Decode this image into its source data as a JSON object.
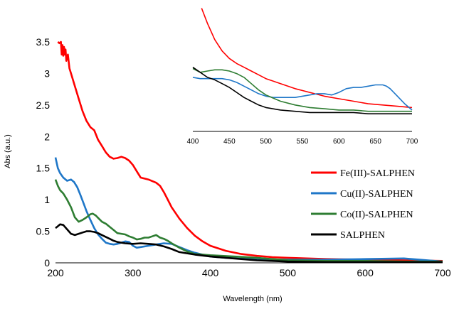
{
  "chart_data": [
    {
      "type": "line",
      "role": "main",
      "xlabel": "Wavelength (nm)",
      "ylabel": "Abs (a.u.)",
      "xlim": [
        200,
        700
      ],
      "ylim": [
        0,
        3.5
      ],
      "xticks": [
        "200",
        "300",
        "400",
        "500",
        "600",
        "700"
      ],
      "yticks": [
        "0",
        "0.5",
        "1",
        "1.5",
        "2",
        "2.5",
        "3",
        "3.5"
      ],
      "grid": false,
      "legend_position": "right",
      "series": [
        {
          "name": "Fe(III)-SALPHEN",
          "color": "#ff0000",
          "x": [
            203,
            205,
            207,
            208,
            209,
            210,
            211,
            212,
            213,
            214,
            216,
            218,
            220,
            225,
            230,
            235,
            240,
            245,
            250,
            255,
            260,
            265,
            270,
            275,
            280,
            285,
            290,
            295,
            300,
            305,
            310,
            320,
            330,
            335,
            340,
            345,
            350,
            360,
            370,
            380,
            390,
            400,
            420,
            440,
            460,
            480,
            500,
            550,
            600,
            650,
            700
          ],
          "y": [
            3.5,
            3.48,
            3.5,
            3.3,
            3.45,
            3.28,
            3.42,
            3.3,
            3.38,
            3.2,
            3.3,
            3.08,
            3.0,
            2.8,
            2.6,
            2.4,
            2.25,
            2.15,
            2.1,
            1.95,
            1.85,
            1.75,
            1.68,
            1.65,
            1.66,
            1.68,
            1.66,
            1.62,
            1.55,
            1.45,
            1.35,
            1.32,
            1.27,
            1.22,
            1.12,
            1.0,
            0.88,
            0.7,
            0.55,
            0.43,
            0.34,
            0.27,
            0.19,
            0.14,
            0.11,
            0.09,
            0.08,
            0.06,
            0.05,
            0.04,
            0.03
          ]
        },
        {
          "name": "Cu(II)-SALPHEN",
          "color": "#1f77c8",
          "x": [
            200,
            203,
            206,
            210,
            215,
            220,
            224,
            228,
            232,
            236,
            240,
            245,
            250,
            255,
            260,
            265,
            270,
            275,
            280,
            285,
            290,
            295,
            300,
            305,
            310,
            320,
            330,
            340,
            350,
            360,
            370,
            380,
            400,
            420,
            450,
            500,
            550,
            600,
            650,
            660,
            680,
            700
          ],
          "y": [
            1.67,
            1.5,
            1.42,
            1.35,
            1.3,
            1.32,
            1.28,
            1.2,
            1.08,
            0.95,
            0.82,
            0.68,
            0.55,
            0.45,
            0.38,
            0.32,
            0.3,
            0.29,
            0.3,
            0.32,
            0.34,
            0.33,
            0.27,
            0.24,
            0.25,
            0.27,
            0.29,
            0.31,
            0.3,
            0.25,
            0.2,
            0.16,
            0.1,
            0.08,
            0.06,
            0.05,
            0.05,
            0.06,
            0.07,
            0.06,
            0.04,
            0.02
          ]
        },
        {
          "name": "Co(II)-SALPHEN",
          "color": "#2e7d32",
          "x": [
            200,
            203,
            206,
            210,
            215,
            220,
            225,
            230,
            235,
            240,
            245,
            248,
            252,
            256,
            260,
            265,
            270,
            275,
            280,
            285,
            290,
            295,
            300,
            305,
            310,
            315,
            320,
            325,
            330,
            335,
            340,
            345,
            350,
            360,
            370,
            380,
            400,
            430,
            460,
            480,
            500,
            550,
            600,
            650,
            700
          ],
          "y": [
            1.32,
            1.22,
            1.15,
            1.1,
            1.0,
            0.88,
            0.72,
            0.65,
            0.68,
            0.72,
            0.77,
            0.78,
            0.75,
            0.7,
            0.65,
            0.62,
            0.57,
            0.52,
            0.47,
            0.46,
            0.45,
            0.42,
            0.4,
            0.37,
            0.38,
            0.4,
            0.4,
            0.42,
            0.44,
            0.4,
            0.38,
            0.35,
            0.31,
            0.24,
            0.18,
            0.14,
            0.12,
            0.1,
            0.08,
            0.06,
            0.04,
            0.03,
            0.03,
            0.02,
            0.02
          ]
        },
        {
          "name": "SALPHEN",
          "color": "#000000",
          "x": [
            200,
            203,
            206,
            210,
            215,
            220,
            225,
            230,
            235,
            240,
            245,
            250,
            255,
            260,
            265,
            270,
            275,
            280,
            285,
            290,
            300,
            310,
            320,
            330,
            340,
            350,
            360,
            380,
            400,
            420,
            440,
            460,
            480,
            500,
            550,
            600,
            650,
            700
          ],
          "y": [
            0.55,
            0.58,
            0.61,
            0.6,
            0.53,
            0.46,
            0.44,
            0.46,
            0.48,
            0.5,
            0.5,
            0.49,
            0.47,
            0.44,
            0.41,
            0.38,
            0.35,
            0.33,
            0.32,
            0.31,
            0.3,
            0.31,
            0.3,
            0.29,
            0.26,
            0.22,
            0.17,
            0.13,
            0.1,
            0.08,
            0.06,
            0.04,
            0.03,
            0.02,
            0.01,
            0.01,
            0.01,
            0.01
          ]
        }
      ]
    },
    {
      "type": "line",
      "role": "inset",
      "xlim": [
        400,
        700
      ],
      "xticks": [
        "400",
        "450",
        "500",
        "550",
        "600",
        "650",
        "700"
      ],
      "grid": false,
      "series": [
        {
          "name": "Fe(III)-SALPHEN",
          "color": "#ff0000",
          "x": [
            412,
            420,
            430,
            440,
            450,
            460,
            470,
            480,
            490,
            500,
            520,
            540,
            560,
            580,
            600,
            620,
            640,
            660,
            680,
            700
          ],
          "y": [
            0.98,
            0.86,
            0.73,
            0.64,
            0.58,
            0.54,
            0.51,
            0.48,
            0.45,
            0.42,
            0.38,
            0.34,
            0.31,
            0.28,
            0.26,
            0.24,
            0.22,
            0.21,
            0.2,
            0.19
          ]
        },
        {
          "name": "Cu(II)-SALPHEN",
          "color": "#1f77c8",
          "x": [
            400,
            410,
            420,
            430,
            440,
            450,
            460,
            470,
            480,
            490,
            500,
            510,
            520,
            530,
            540,
            550,
            560,
            570,
            580,
            590,
            600,
            610,
            620,
            630,
            640,
            650,
            660,
            665,
            670,
            680,
            690,
            700
          ],
          "y": [
            0.43,
            0.42,
            0.42,
            0.42,
            0.42,
            0.41,
            0.39,
            0.36,
            0.33,
            0.3,
            0.28,
            0.27,
            0.27,
            0.27,
            0.27,
            0.28,
            0.29,
            0.3,
            0.3,
            0.29,
            0.31,
            0.34,
            0.35,
            0.35,
            0.36,
            0.37,
            0.37,
            0.36,
            0.34,
            0.28,
            0.22,
            0.17
          ]
        },
        {
          "name": "Co(II)-SALPHEN",
          "color": "#2e7d32",
          "x": [
            400,
            410,
            420,
            430,
            440,
            450,
            460,
            470,
            480,
            490,
            500,
            520,
            540,
            560,
            580,
            600,
            620,
            640,
            660,
            680,
            700
          ],
          "y": [
            0.5,
            0.47,
            0.48,
            0.49,
            0.49,
            0.48,
            0.46,
            0.43,
            0.38,
            0.33,
            0.29,
            0.24,
            0.21,
            0.19,
            0.18,
            0.17,
            0.17,
            0.16,
            0.16,
            0.16,
            0.16
          ]
        },
        {
          "name": "SALPHEN",
          "color": "#000000",
          "x": [
            400,
            410,
            420,
            430,
            440,
            450,
            460,
            470,
            480,
            490,
            500,
            520,
            540,
            560,
            580,
            600,
            620,
            640,
            660,
            680,
            700
          ],
          "y": [
            0.51,
            0.47,
            0.43,
            0.41,
            0.38,
            0.35,
            0.31,
            0.27,
            0.24,
            0.21,
            0.19,
            0.17,
            0.16,
            0.15,
            0.15,
            0.15,
            0.15,
            0.14,
            0.14,
            0.14,
            0.14
          ]
        }
      ]
    }
  ]
}
